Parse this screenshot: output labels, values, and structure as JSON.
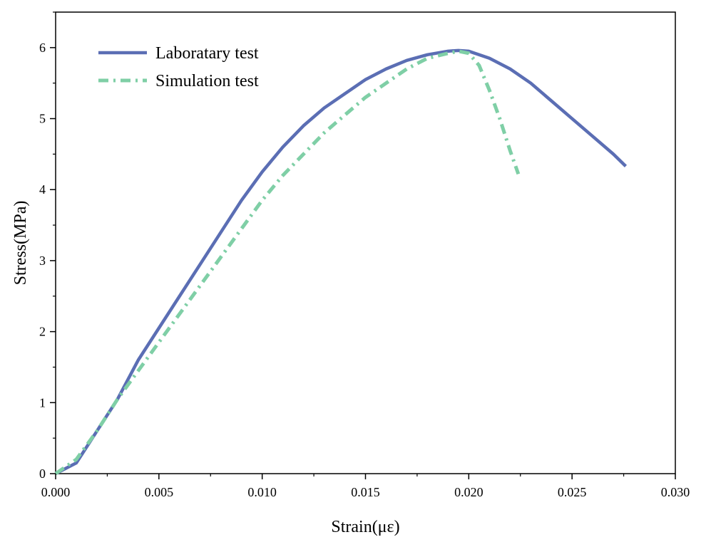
{
  "chart_data": {
    "type": "line",
    "title": "",
    "xlabel": "Strain(με)",
    "ylabel": "Stress(MPa)",
    "xlim": [
      0,
      0.03
    ],
    "ylim": [
      0,
      6.5
    ],
    "x_ticks": [
      0.0,
      0.005,
      0.01,
      0.015,
      0.02,
      0.025,
      0.03
    ],
    "x_tick_labels": [
      "0.000",
      "0.005",
      "0.010",
      "0.015",
      "0.020",
      "0.025",
      "0.030"
    ],
    "y_ticks": [
      0,
      1,
      2,
      3,
      4,
      5,
      6
    ],
    "y_tick_labels": [
      "0",
      "1",
      "2",
      "3",
      "4",
      "5",
      "6"
    ],
    "grid": false,
    "legend_position": "top-left",
    "series": [
      {
        "name": "Laboratary test",
        "color": "#5b6eb4",
        "style": "solid",
        "x": [
          0.0,
          0.001,
          0.002,
          0.003,
          0.004,
          0.005,
          0.006,
          0.007,
          0.008,
          0.009,
          0.01,
          0.011,
          0.012,
          0.013,
          0.014,
          0.015,
          0.016,
          0.017,
          0.018,
          0.019,
          0.0195,
          0.02,
          0.021,
          0.022,
          0.023,
          0.024,
          0.025,
          0.026,
          0.027,
          0.0276
        ],
        "y": [
          0.0,
          0.15,
          0.6,
          1.05,
          1.6,
          2.05,
          2.5,
          2.95,
          3.4,
          3.85,
          4.25,
          4.6,
          4.9,
          5.15,
          5.35,
          5.55,
          5.7,
          5.82,
          5.9,
          5.95,
          5.96,
          5.95,
          5.85,
          5.7,
          5.5,
          5.25,
          5.0,
          4.75,
          4.5,
          4.33
        ]
      },
      {
        "name": "Simulation test",
        "color": "#7fcfa6",
        "style": "dash-dot",
        "x": [
          0.0,
          0.001,
          0.002,
          0.003,
          0.004,
          0.005,
          0.006,
          0.007,
          0.008,
          0.009,
          0.01,
          0.011,
          0.012,
          0.013,
          0.014,
          0.015,
          0.016,
          0.017,
          0.018,
          0.019,
          0.0195,
          0.02,
          0.0205,
          0.021,
          0.0215,
          0.022,
          0.0224
        ],
        "y": [
          0.0,
          0.2,
          0.6,
          1.05,
          1.45,
          1.85,
          2.25,
          2.65,
          3.05,
          3.45,
          3.85,
          4.2,
          4.5,
          4.8,
          5.05,
          5.3,
          5.5,
          5.7,
          5.85,
          5.92,
          5.95,
          5.92,
          5.75,
          5.4,
          5.0,
          4.55,
          4.22
        ]
      }
    ]
  }
}
